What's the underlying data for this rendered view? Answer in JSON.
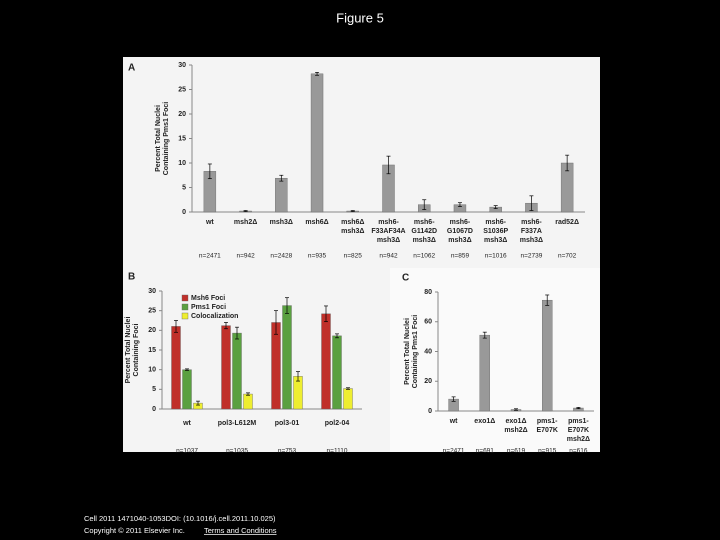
{
  "title": "Figure 5",
  "chart_data": [
    {
      "type": "bar",
      "panel": "A",
      "ylabel": [
        "Percent Total Nuclei",
        "Containing Pms1 Foci"
      ],
      "categories": [
        "wt",
        "msh2Δ",
        "msh3Δ",
        "msh6Δ",
        [
          "msh6Δ",
          "msh3Δ"
        ],
        [
          "msh6-",
          "F33AF34A",
          "msh3Δ"
        ],
        [
          "msh6-",
          "G1142D",
          "msh3Δ"
        ],
        [
          "msh6-",
          "G1067D",
          "msh3Δ"
        ],
        [
          "msh6-",
          "S1036P",
          "msh3Δ"
        ],
        [
          "msh6-",
          "F337A",
          "msh3Δ"
        ],
        "rad52Δ"
      ],
      "series": [
        {
          "color": "#999999",
          "values": [
            8.3,
            0.2,
            6.9,
            28.2,
            0.2,
            9.6,
            1.5,
            1.5,
            1.0,
            1.8,
            10.0
          ],
          "errors": [
            1.5,
            0.1,
            0.6,
            0.3,
            0.1,
            1.8,
            1.0,
            0.4,
            0.3,
            1.5,
            1.6
          ]
        }
      ],
      "n_labels": [
        "n=2471",
        "n=942",
        "n=2428",
        "n=935",
        "n=825",
        "n=942",
        "n=1062",
        "n=859",
        "n=1016",
        "n=2739",
        "n=702"
      ],
      "ylim": [
        0,
        30
      ],
      "yticks": [
        0,
        5,
        10,
        15,
        20,
        25,
        30
      ]
    },
    {
      "type": "bar",
      "panel": "B",
      "ylabel": [
        "Percent Total Nuclei",
        "Containing Foci"
      ],
      "categories": [
        "wt",
        "pol3-L612M",
        "pol3-01",
        "pol2-04"
      ],
      "series": [
        {
          "name": "Msh6 Foci",
          "color": "#c0302a",
          "values": [
            21,
            21.2,
            22,
            24.2
          ],
          "errors": [
            1.5,
            0.8,
            3,
            2
          ]
        },
        {
          "name": "Pms1 Foci",
          "color": "#5aa040",
          "values": [
            10,
            19.3,
            26.3,
            18.6
          ],
          "errors": [
            0.2,
            1.5,
            2,
            0.5
          ]
        },
        {
          "name": "Colocalization",
          "color": "#eeee30",
          "values": [
            1.5,
            3.8,
            8.3,
            5.2
          ],
          "errors": [
            0.5,
            0.3,
            1.2,
            0.2
          ]
        }
      ],
      "n_labels": [
        "n=1037",
        "n=1035",
        "n=753",
        "n=1110"
      ],
      "ylim": [
        0,
        30
      ],
      "yticks": [
        0,
        5,
        10,
        15,
        20,
        25,
        30
      ]
    },
    {
      "type": "bar",
      "panel": "C",
      "ylabel": [
        "Percent Total Nuclei",
        "Containing Pms1 Foci"
      ],
      "categories": [
        "wt",
        "exo1Δ",
        [
          "exo1Δ",
          "msh2Δ"
        ],
        [
          "pms1-",
          "E707K"
        ],
        [
          "pms1-",
          "E707K",
          "msh2Δ"
        ]
      ],
      "series": [
        {
          "color": "#999999",
          "values": [
            8,
            51,
            1,
            74.5,
            2
          ],
          "errors": [
            1.5,
            2,
            0.5,
            3.5,
            0.4
          ]
        }
      ],
      "n_labels": [
        "n=2471",
        "n=691",
        "n=619",
        "n=915",
        "n=616"
      ],
      "ylim": [
        0,
        80
      ],
      "yticks": [
        0,
        20,
        40,
        60,
        80
      ]
    }
  ],
  "footer": {
    "citation": "Cell 2011 1471040-1053DOI: (10.1016/j.cell.2011.10.025)",
    "copyright": "Copyright © 2011 Elsevier Inc.",
    "link": "Terms and Conditions"
  }
}
